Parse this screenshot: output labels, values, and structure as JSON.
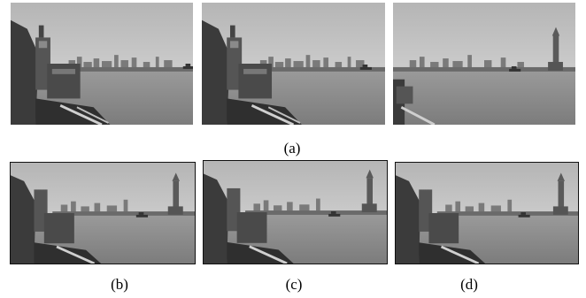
{
  "figure": {
    "row1_caption": "(a)",
    "row2_captions": [
      "(b)",
      "(c)",
      "(d)"
    ]
  },
  "palette": {
    "sky_top": "#b9b9b9",
    "sky_bottom": "#d9d9d9",
    "water": "#8c8c8c",
    "skyline": "#6e6e6e",
    "foreground": "#3a3a3a"
  }
}
